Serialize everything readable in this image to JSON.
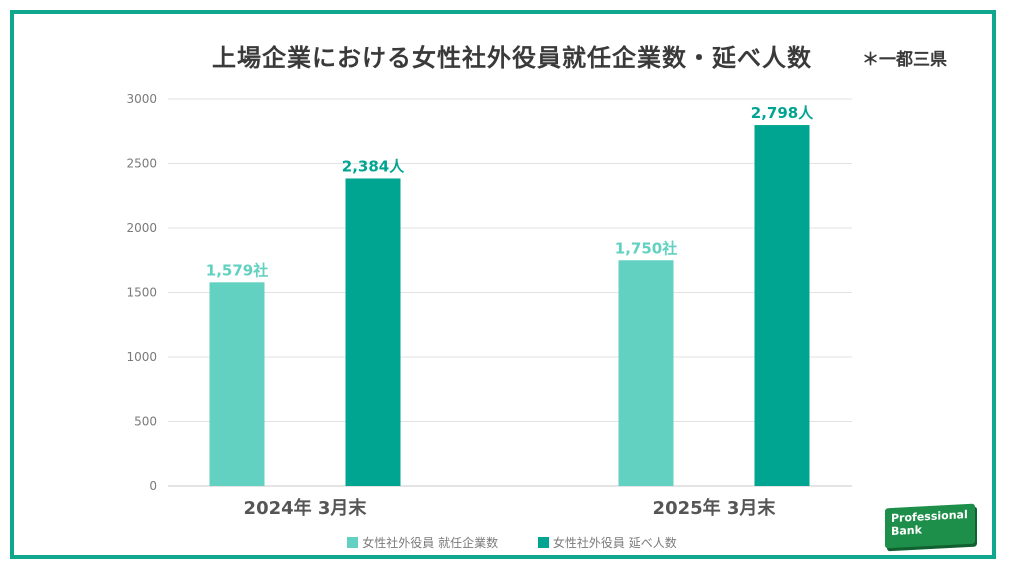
{
  "title": "上場企業における女性社外役員就任企業数・延べ人数",
  "title_note": "＊一都三県",
  "logo": {
    "line1": "Professional",
    "line2": "Bank"
  },
  "colors": {
    "frame": "#0fa88e",
    "series1": "#62d1c1",
    "series2": "#00a591"
  },
  "chart_data": {
    "type": "bar",
    "categories": [
      "2024年 3月末",
      "2025年 3月末"
    ],
    "series": [
      {
        "name": "女性社外役員 就任企業数",
        "values": [
          1579,
          1750
        ],
        "labels": [
          "1,579社",
          "1,750社"
        ]
      },
      {
        "name": "女性社外役員 延べ人数",
        "values": [
          2384,
          2798
        ],
        "labels": [
          "2,384人",
          "2,798人"
        ]
      }
    ],
    "yticks": [
      0,
      500,
      1000,
      1500,
      2000,
      2500,
      3000
    ],
    "ylim": [
      0,
      3000
    ],
    "grid": true,
    "legend": "bottom"
  }
}
